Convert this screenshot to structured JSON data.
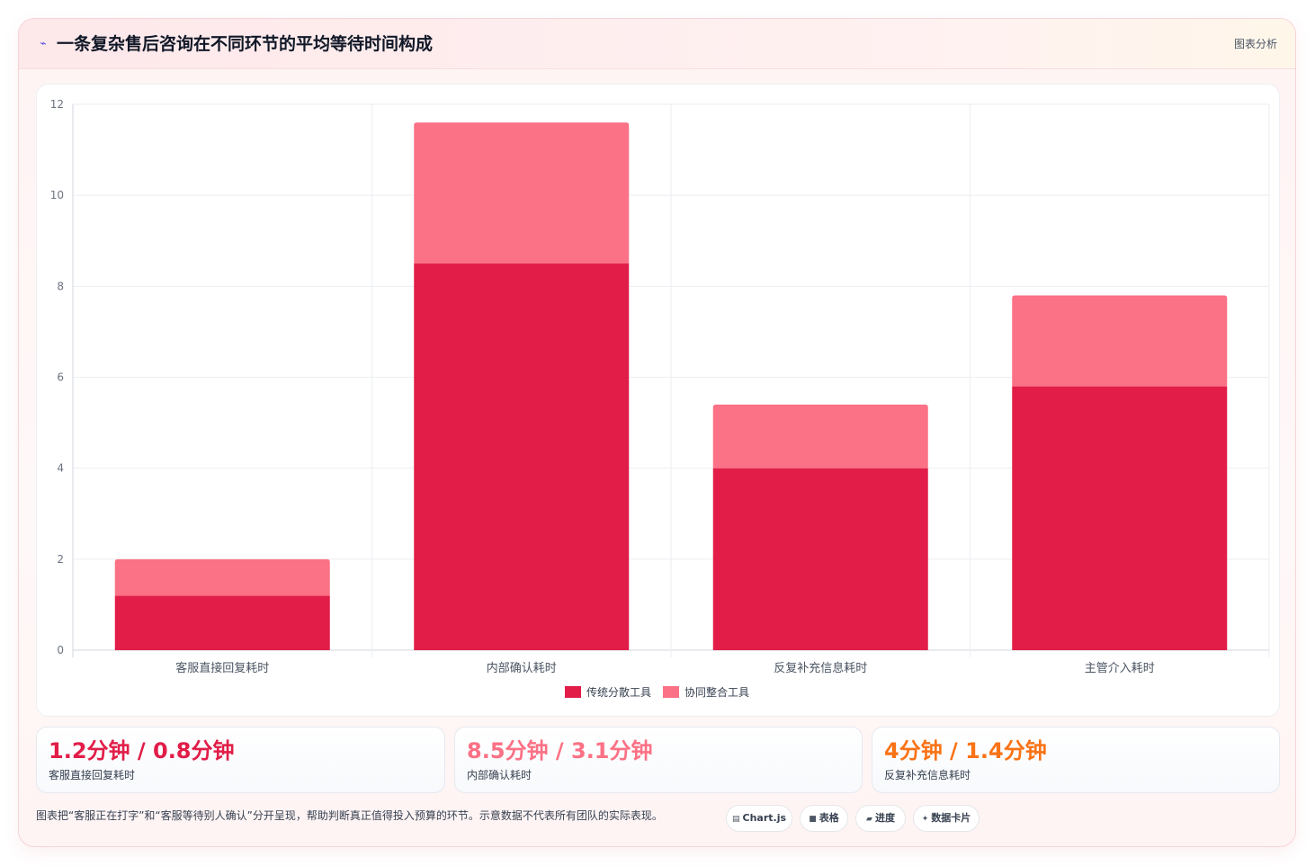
{
  "header": {
    "icon": "lightning-icon",
    "title": "一条复杂售后咨询在不同环节的平均等待时间构成",
    "link": "图表分析"
  },
  "colors": {
    "primary": "#e11d48",
    "secondary": "#fb7185",
    "orange": "#f97316"
  },
  "chart_data": {
    "type": "bar",
    "stacked": true,
    "categories": [
      "客服直接回复耗时",
      "内部确认耗时",
      "反复补充信息耗时",
      "主管介入耗时"
    ],
    "series": [
      {
        "name": "传统分散工具",
        "color": "#e11d48",
        "values": [
          1.2,
          8.5,
          4.0,
          5.8
        ]
      },
      {
        "name": "协同整合工具",
        "color": "#fb7185",
        "values": [
          0.8,
          3.1,
          1.4,
          2.0
        ]
      }
    ],
    "ylim": [
      0,
      12
    ],
    "yticks": [
      "0",
      "2",
      "4",
      "6",
      "8",
      "10",
      "12"
    ],
    "grid": true,
    "legend": "bottom-center"
  },
  "stats": [
    {
      "value": "1.2分钟 / 0.8分钟",
      "label": "客服直接回复耗时",
      "color": "#e11d48"
    },
    {
      "value": "8.5分钟 / 3.1分钟",
      "label": "内部确认耗时",
      "color": "#fb7185"
    },
    {
      "value": "4分钟 / 1.4分钟",
      "label": "反复补充信息耗时",
      "color": "#f97316"
    }
  ],
  "footnote": "图表把“客服正在打字”和“客服等待别人确认”分开呈现，帮助判断真正值得投入预算的环节。示意数据不代表所有团队的实际表现。",
  "chips": [
    {
      "icon": "chart-icon",
      "label": "Chart.js"
    },
    {
      "icon": "table-icon",
      "label": "表格"
    },
    {
      "icon": "progress-icon",
      "label": "进度"
    },
    {
      "icon": "sparkle-icon",
      "label": "数据卡片"
    }
  ]
}
